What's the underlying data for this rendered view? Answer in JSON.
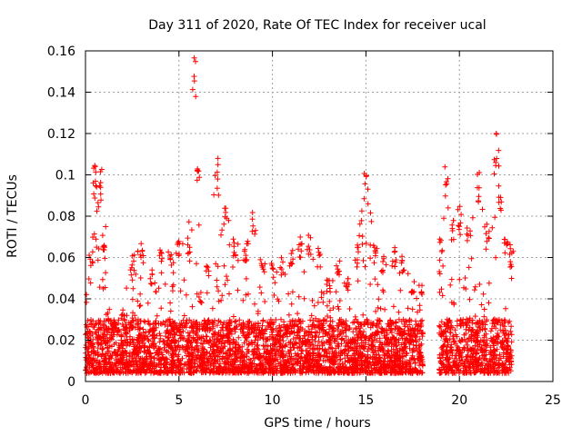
{
  "chart_data": {
    "type": "scatter",
    "title": "Day 311 of 2020, Rate Of TEC Index for receiver ucal",
    "xlabel": "GPS time / hours",
    "ylabel": "ROTI / TECUs",
    "xlim": [
      0,
      25
    ],
    "ylim": [
      0,
      0.16
    ],
    "xticks": [
      "0",
      "5",
      "10",
      "15",
      "20",
      "25"
    ],
    "yticks": [
      "0",
      "0.02",
      "0.04",
      "0.06",
      "0.08",
      "0.1",
      "0.12",
      "0.14",
      "0.16"
    ],
    "grid": true,
    "marker": "+",
    "color": "#ff0000",
    "data_gaps_hours": [
      [
        18.05,
        18.9
      ]
    ],
    "series": [
      {
        "envelope_x": [
          0.0,
          0.3,
          0.5,
          0.6,
          0.8,
          1.0,
          1.2,
          1.5,
          2.0,
          2.5,
          3.0,
          3.5,
          4.0,
          4.5,
          5.0,
          5.5,
          5.8,
          6.0,
          6.5,
          7.0,
          7.5,
          8.0,
          8.5,
          9.0,
          9.5,
          10.0,
          10.5,
          11.0,
          11.5,
          12.0,
          12.5,
          13.0,
          13.5,
          14.0,
          14.5,
          15.0,
          15.5,
          16.0,
          16.5,
          17.0,
          17.5,
          18.0,
          19.0,
          19.3,
          19.6,
          20.0,
          20.5,
          21.0,
          21.5,
          22.0,
          22.2,
          22.5,
          22.8
        ],
        "envelope_max": [
          0.045,
          0.065,
          0.106,
          0.098,
          0.103,
          0.075,
          0.035,
          0.03,
          0.035,
          0.063,
          0.069,
          0.055,
          0.066,
          0.064,
          0.068,
          0.072,
          0.157,
          0.11,
          0.06,
          0.11,
          0.085,
          0.07,
          0.065,
          0.082,
          0.06,
          0.058,
          0.06,
          0.065,
          0.07,
          0.072,
          0.065,
          0.05,
          0.06,
          0.05,
          0.065,
          0.101,
          0.066,
          0.062,
          0.065,
          0.06,
          0.05,
          0.047,
          0.069,
          0.105,
          0.08,
          0.085,
          0.08,
          0.102,
          0.075,
          0.121,
          0.095,
          0.07,
          0.065
        ],
        "baseline_min": 0.004,
        "typical_max": 0.03
      }
    ]
  }
}
